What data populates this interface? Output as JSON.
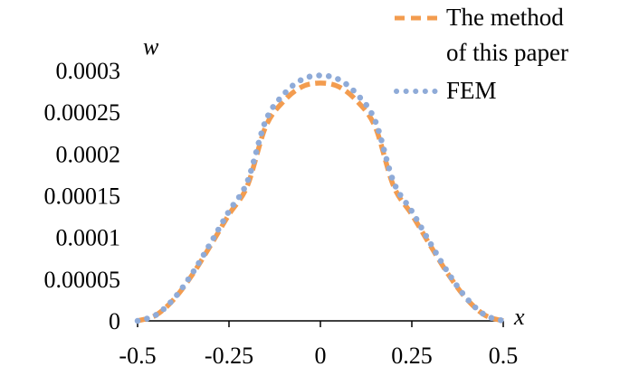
{
  "chart_data": {
    "type": "line",
    "xlabel": "x",
    "ylabel": "w",
    "xlim": [
      -0.5,
      0.5
    ],
    "ylim": [
      0,
      0.0003
    ],
    "x_ticks": [
      "-0.5",
      "-0.25",
      "0",
      "0.25",
      "0.5"
    ],
    "y_ticks": [
      "0",
      "0.00005",
      "0.0001",
      "0.00015",
      "0.0002",
      "0.00025",
      "0.0003"
    ],
    "grid": false,
    "legend_position": "top-right",
    "series": [
      {
        "name_lines": [
          "The method",
          "of this paper"
        ],
        "style": "dashed",
        "color": "#f39c4f",
        "x": [
          -0.5,
          -0.45,
          -0.4,
          -0.35,
          -0.3,
          -0.25,
          -0.2,
          -0.15,
          -0.1,
          -0.05,
          0,
          0.05,
          0.1,
          0.15,
          0.2,
          0.25,
          0.3,
          0.35,
          0.4,
          0.45,
          0.5
        ],
        "y": [
          0,
          6.8e-06,
          2.62e-05,
          5.55e-05,
          9.07e-05,
          0.0001275,
          0.0001616,
          0.0002323,
          0.0002634,
          0.0002806,
          0.000285,
          0.0002806,
          0.0002634,
          0.0002323,
          0.0001616,
          0.0001275,
          9.07e-05,
          5.55e-05,
          2.62e-05,
          6.8e-06,
          0
        ]
      },
      {
        "name": "FEM",
        "style": "dotted",
        "color": "#8fabd8",
        "x": [
          -0.5,
          -0.45,
          -0.4,
          -0.35,
          -0.3,
          -0.25,
          -0.2,
          -0.15,
          -0.1,
          -0.05,
          0,
          0.05,
          0.1,
          0.15,
          0.2,
          0.25,
          0.3,
          0.35,
          0.4,
          0.45,
          0.5
        ],
        "y": [
          0,
          7e-06,
          2.7e-05,
          5.72e-05,
          9.35e-05,
          0.0001314,
          0.0001666,
          0.0002395,
          0.0002716,
          0.0002893,
          0.000294,
          0.0002893,
          0.0002716,
          0.0002395,
          0.0001666,
          0.0001314,
          9.35e-05,
          5.72e-05,
          2.7e-05,
          7e-06,
          0
        ]
      }
    ]
  }
}
